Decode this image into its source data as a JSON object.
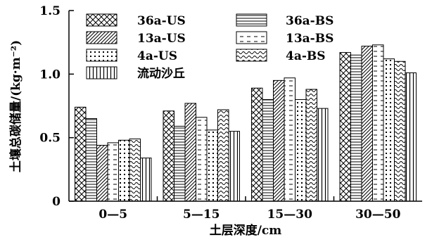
{
  "chart_data": {
    "type": "bar",
    "xlabel": "土层深度/cm",
    "ylabel": "土壤总碳储量/(kg·m⁻²)",
    "ylim": [
      0,
      1.5
    ],
    "yticks": [
      "0",
      "0.5",
      "1.0",
      "1.5"
    ],
    "categories": [
      "0—5",
      "5—15",
      "15—30",
      "30—50"
    ],
    "legend_placement": "top-left",
    "series": [
      {
        "name": "36a-US",
        "pattern": "crosshatch",
        "values": [
          0.74,
          0.71,
          0.89,
          1.17
        ]
      },
      {
        "name": "36a-BS",
        "pattern": "horizontal",
        "values": [
          0.65,
          0.59,
          0.8,
          1.15
        ]
      },
      {
        "name": "13a-US",
        "pattern": "diagonal",
        "values": [
          0.44,
          0.77,
          0.95,
          1.22
        ]
      },
      {
        "name": "13a-BS",
        "pattern": "dashes",
        "values": [
          0.46,
          0.66,
          0.97,
          1.23
        ]
      },
      {
        "name": "4a-US",
        "pattern": "dots",
        "values": [
          0.48,
          0.56,
          0.8,
          1.12
        ]
      },
      {
        "name": "4a-BS",
        "pattern": "waves",
        "values": [
          0.49,
          0.72,
          0.88,
          1.1
        ]
      },
      {
        "name": "流动沙丘",
        "pattern": "vertical",
        "values": [
          0.34,
          0.55,
          0.73,
          1.01
        ]
      }
    ]
  }
}
